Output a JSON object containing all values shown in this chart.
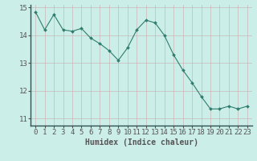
{
  "x": [
    0,
    1,
    2,
    3,
    4,
    5,
    6,
    7,
    8,
    9,
    10,
    11,
    12,
    13,
    14,
    15,
    16,
    17,
    18,
    19,
    20,
    21,
    22,
    23
  ],
  "y": [
    14.85,
    14.2,
    14.75,
    14.2,
    14.15,
    14.25,
    13.9,
    13.7,
    13.45,
    13.1,
    13.55,
    14.2,
    14.55,
    14.45,
    14.0,
    13.3,
    12.75,
    12.3,
    11.8,
    11.35,
    11.35,
    11.45,
    11.35,
    11.45
  ],
  "line_color": "#2e7d6e",
  "marker": "D",
  "marker_size": 2.0,
  "bg_color": "#cceee8",
  "grid_color": "#c8b8b8",
  "axis_color": "#555555",
  "xlabel": "Humidex (Indice chaleur)",
  "xlabel_fontsize": 7.0,
  "tick_fontsize": 6.5,
  "ylim": [
    10.75,
    15.1
  ],
  "xlim": [
    -0.5,
    23.5
  ],
  "yticks": [
    11,
    12,
    13,
    14,
    15
  ],
  "xticks": [
    0,
    1,
    2,
    3,
    4,
    5,
    6,
    7,
    8,
    9,
    10,
    11,
    12,
    13,
    14,
    15,
    16,
    17,
    18,
    19,
    20,
    21,
    22,
    23
  ]
}
